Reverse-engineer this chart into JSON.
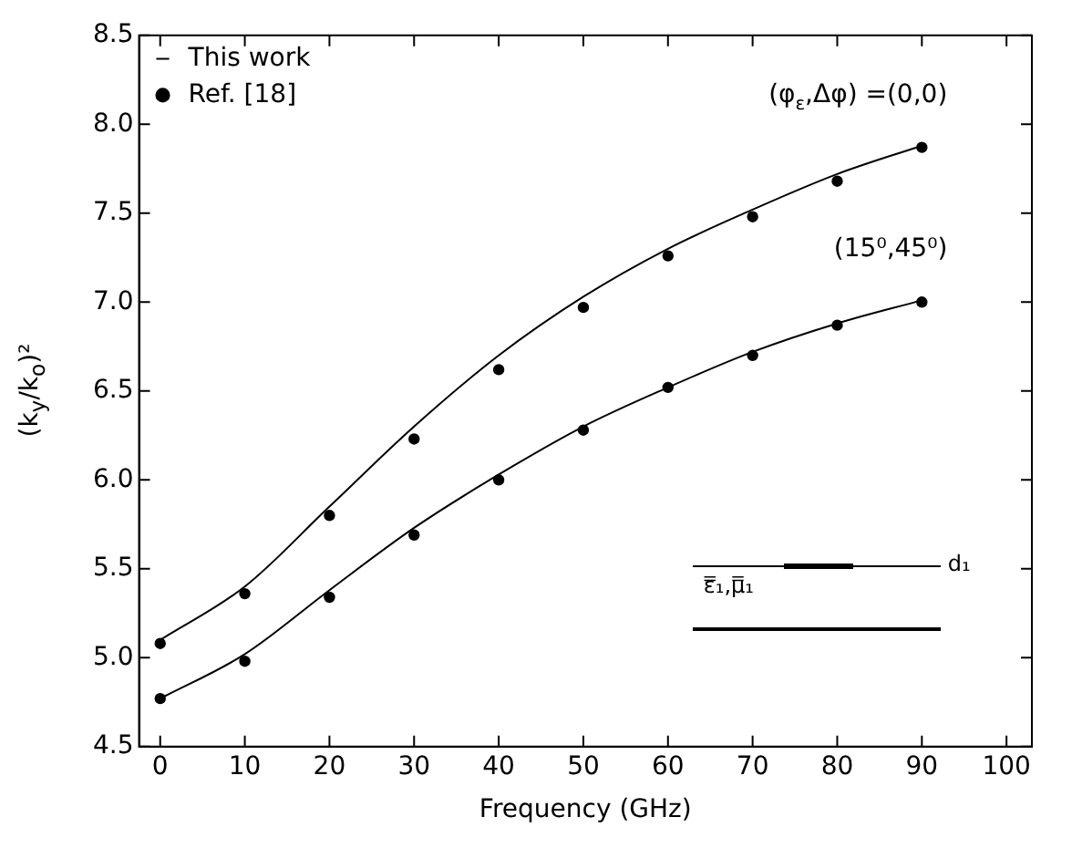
{
  "chart_data": {
    "type": "line",
    "xlabel": "Frequency (GHz)",
    "ylabel": "(k$_{y}$/k$_{o}$)²",
    "x": [
      0,
      10,
      20,
      30,
      40,
      50,
      60,
      70,
      80,
      90
    ],
    "xlim": [
      -2.5,
      103
    ],
    "xticks": [
      0,
      10,
      20,
      30,
      40,
      50,
      60,
      70,
      80,
      90,
      100
    ],
    "ylim": [
      4.5,
      8.5
    ],
    "yticks": [
      4.5,
      {
        "value": 5,
        "label": "5.0"
      },
      5.5,
      {
        "value": 6,
        "label": "6.0"
      },
      6.5,
      {
        "value": 7,
        "label": "7.0"
      },
      7.5,
      {
        "value": 8,
        "label": "8.0"
      },
      8.5
    ],
    "grid": false,
    "legend": "top left",
    "marker": "circle",
    "series": [
      {
        "name": "This work",
        "marker": "none",
        "color": "#000000",
        "values": [
          5.1,
          5.4,
          5.85,
          6.3,
          6.7,
          7.03,
          7.3,
          7.52,
          7.72,
          7.88
        ]
      },
      {
        "marker": "none",
        "color": "#000000",
        "values": [
          4.77,
          5.02,
          5.38,
          5.73,
          6.03,
          6.3,
          6.52,
          6.72,
          6.88,
          7.01
        ]
      },
      {
        "name": "Ref. [18]",
        "type": "scatter",
        "color": "#000000",
        "values": [
          5.08,
          5.36,
          5.8,
          6.23,
          6.62,
          6.97,
          7.26,
          7.48,
          7.68,
          7.87
        ]
      },
      {
        "type": "scatter",
        "color": "#000000",
        "values": [
          4.77,
          4.98,
          5.34,
          5.69,
          6.0,
          6.28,
          6.52,
          6.7,
          6.87,
          7.0
        ]
      }
    ],
    "annotations": [
      "(φ$_{ε}$,Δφ) =(0,0)",
      "(15⁰,45⁰)",
      "d₁",
      "ε̿₁,μ̿₁"
    ]
  }
}
